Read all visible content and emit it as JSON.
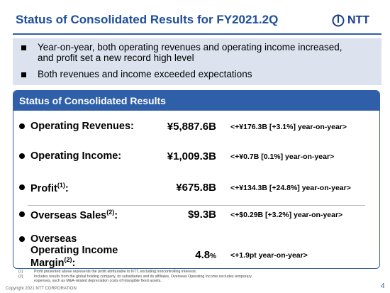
{
  "header": {
    "title": "Status of Consolidated Results for FY2021.2Q",
    "logo": "NTT"
  },
  "highlights": [
    "Year-on-year, both operating revenues and operating income increased,  and profit set a  new record high level",
    "Both revenues and income exceeded expectations"
  ],
  "panel": {
    "title": "Status of Consolidated Results",
    "rows": [
      {
        "label": "Operating Revenues:",
        "value": "¥5,887.6B",
        "change": "<+¥176.3B [+3.1%] year-on-year>"
      },
      {
        "label": "Operating Income:",
        "value": "¥1,009.3B",
        "change": "<+¥0.7B [0.1%] year-on-year>"
      },
      {
        "label": "Profit",
        "note": "(1)",
        "label_end": ":",
        "value": "¥675.8B",
        "change": "<+¥134.3B [+24.8%] year-on-year>"
      },
      {
        "label": "Overseas Sales",
        "note": "(2)",
        "label_end": ":",
        "value": "$9.3B",
        "change": "<+$0.29B [+3.2%] year-on-year>"
      },
      {
        "label": "Overseas Operating Income Margin",
        "note": "(2)",
        "label_end": ":",
        "value": "4.8",
        "unit": "%",
        "change": "<+1.9pt year-on-year>"
      }
    ]
  },
  "footnotes": [
    {
      "mark": "(1)",
      "text": "Profit presented above represents the profit attributable to NTT, excluding noncontrolling interests."
    },
    {
      "mark": "(2)",
      "text": "Includes results from the global holding  company, its subsidiaries and its affiliates. Overseas Operating Income excludes temporary expenses, such as M&A-related depreciation costs of intangible fixed assets."
    }
  ],
  "footer": {
    "copyright": "Copyright 2021  NTT CORPORATION",
    "page": "4"
  }
}
